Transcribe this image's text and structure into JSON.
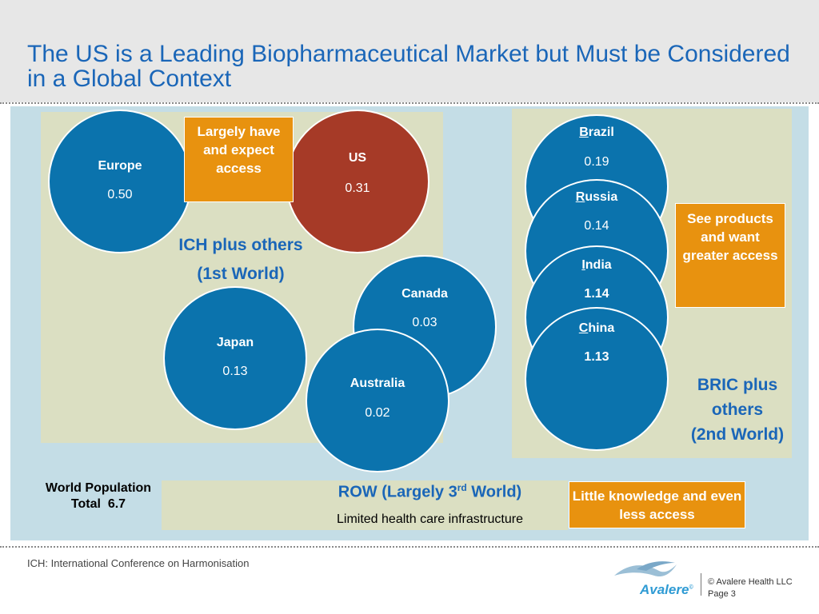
{
  "title": "The US is a Leading Biopharmaceutical Market but Must be Considered in a Global Context",
  "ich_group": {
    "label_line1": "ICH plus others",
    "label_line2": "(1st World)",
    "note": "Largely have and expect access",
    "countries": {
      "europe": {
        "name": "Europe",
        "value": "0.50"
      },
      "us": {
        "name": "US",
        "value": "0.31"
      },
      "canada": {
        "name": "Canada",
        "value": "0.03"
      },
      "japan": {
        "name": "Japan",
        "value": "0.13"
      },
      "australia": {
        "name": "Australia",
        "value": "0.02"
      }
    }
  },
  "bric_group": {
    "label_line1": "BRIC plus",
    "label_line2": "others",
    "label_line3": "(2nd World)",
    "note": "See products and want greater access",
    "countries": {
      "brazil": {
        "initial": "B",
        "rest": "razil",
        "value": "0.19"
      },
      "russia": {
        "initial": "R",
        "rest": "ussia",
        "value": "0.14"
      },
      "india": {
        "initial": "I",
        "rest": "ndia",
        "value": "1.14"
      },
      "china": {
        "initial": "C",
        "rest": "hina",
        "value": "1.13"
      }
    }
  },
  "row_group": {
    "title_main": "ROW (Largely 3",
    "title_sup": "rd",
    "title_end": " World)",
    "subtitle": "Limited health care infrastructure",
    "note": "Little knowledge and even less access"
  },
  "population": {
    "line1": "World Population",
    "line2": "Total  6.7"
  },
  "footer": {
    "footnote": "ICH: International Conference on Harmonisation",
    "copyright": "© Avalere Health LLC",
    "page": "Page 3",
    "logo_text": "Avalere",
    "logo_mark": "©"
  },
  "colors": {
    "title_blue": "#1a66b8",
    "circle_blue": "#0b73ad",
    "us_red": "#a63a27",
    "note_orange": "#e8920f",
    "region_beige": "#dbdfc2",
    "background_light_blue": "#c4dde6"
  }
}
